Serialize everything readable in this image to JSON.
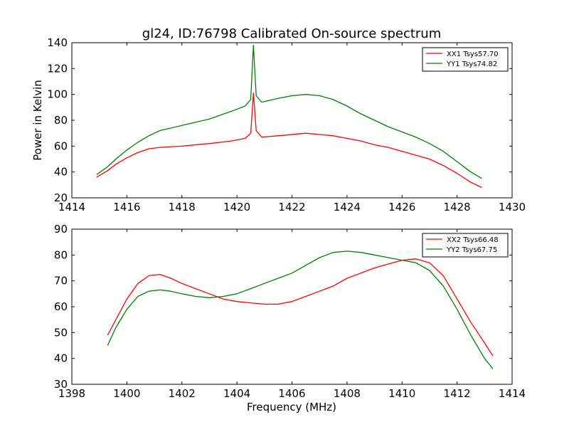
{
  "chart_data": {
    "title": "gl24, ID:76798 Calibrated On-source spectrum",
    "xlabel": "Frequency (MHz)",
    "ylabel": "Power in Kelvin",
    "panels": [
      {
        "type": "line",
        "xlim": [
          1414,
          1430
        ],
        "ylim": [
          20,
          140
        ],
        "xticks": [
          1414,
          1416,
          1418,
          1420,
          1422,
          1424,
          1426,
          1428,
          1430
        ],
        "yticks": [
          20,
          40,
          60,
          80,
          100,
          120,
          140
        ],
        "legend_position": "top-right",
        "series": [
          {
            "name": "XX1 Tsys57.70",
            "color": "#ff0000",
            "x": [
              1414.9,
              1415.3,
              1415.6,
              1416.0,
              1416.4,
              1416.8,
              1417.2,
              1418.0,
              1419.0,
              1419.8,
              1420.3,
              1420.5,
              1420.6,
              1420.7,
              1420.9,
              1421.5,
              1422.5,
              1423.0,
              1423.5,
              1424.0,
              1424.5,
              1425.0,
              1425.5,
              1426.0,
              1426.5,
              1427.0,
              1427.5,
              1428.0,
              1428.5,
              1428.9
            ],
            "y": [
              36,
              41,
              46,
              51,
              55,
              58,
              59,
              60,
              62,
              64,
              66,
              70,
              101,
              72,
              67,
              68,
              70,
              69,
              68,
              66,
              64,
              61,
              59,
              56,
              53,
              50,
              45,
              39,
              32,
              28
            ]
          },
          {
            "name": "YY1 Tsys74.82",
            "color": "#008000",
            "x": [
              1414.9,
              1415.3,
              1415.6,
              1416.0,
              1416.4,
              1416.8,
              1417.2,
              1418.0,
              1419.0,
              1419.8,
              1420.3,
              1420.5,
              1420.6,
              1420.7,
              1420.9,
              1421.5,
              1422.0,
              1422.5,
              1423.0,
              1423.5,
              1424.0,
              1424.5,
              1425.0,
              1425.5,
              1426.0,
              1426.5,
              1427.0,
              1427.5,
              1428.0,
              1428.5,
              1428.9
            ],
            "y": [
              38,
              44,
              50,
              57,
              63,
              68,
              72,
              76,
              81,
              87,
              91,
              96,
              138,
              99,
              94,
              97,
              99,
              100,
              99,
              96,
              91,
              85,
              80,
              75,
              71,
              67,
              62,
              56,
              48,
              40,
              35
            ]
          }
        ]
      },
      {
        "type": "line",
        "xlim": [
          1398,
          1414
        ],
        "ylim": [
          30,
          90
        ],
        "xticks": [
          1398,
          1400,
          1402,
          1404,
          1406,
          1408,
          1410,
          1412,
          1414
        ],
        "yticks": [
          30,
          40,
          50,
          60,
          70,
          80,
          90
        ],
        "legend_position": "top-right",
        "series": [
          {
            "name": "XX2 Tsys66.48",
            "color": "#ff0000",
            "x": [
              1399.3,
              1399.6,
              1400.0,
              1400.4,
              1400.8,
              1401.2,
              1401.6,
              1402.0,
              1402.5,
              1403.0,
              1403.5,
              1404.0,
              1404.5,
              1405.0,
              1405.5,
              1406.0,
              1406.5,
              1407.0,
              1407.5,
              1408.0,
              1408.5,
              1409.0,
              1409.5,
              1410.0,
              1410.5,
              1411.0,
              1411.5,
              1412.0,
              1412.5,
              1413.0,
              1413.3
            ],
            "y": [
              49,
              55,
              63,
              69,
              72,
              72.5,
              71,
              69,
              67,
              65,
              63,
              62,
              61.5,
              61,
              61,
              62,
              64,
              66,
              68,
              71,
              73,
              75,
              76.5,
              78,
              78.5,
              77,
              72,
              63,
              54,
              46,
              41
            ]
          },
          {
            "name": "YY2 Tsys67.75",
            "color": "#008000",
            "x": [
              1399.3,
              1399.6,
              1400.0,
              1400.4,
              1400.8,
              1401.2,
              1401.6,
              1402.0,
              1402.5,
              1403.0,
              1403.5,
              1404.0,
              1404.5,
              1405.0,
              1405.5,
              1406.0,
              1406.5,
              1407.0,
              1407.5,
              1408.0,
              1408.5,
              1409.0,
              1409.5,
              1410.0,
              1410.5,
              1411.0,
              1411.5,
              1412.0,
              1412.5,
              1413.0,
              1413.3
            ],
            "y": [
              45,
              52,
              59,
              64,
              66,
              66.5,
              66,
              65,
              64,
              63.5,
              64,
              65,
              67,
              69,
              71,
              73,
              76,
              79,
              81,
              81.5,
              81,
              80,
              79,
              78,
              77,
              74,
              68,
              59,
              49,
              40,
              36
            ]
          }
        ]
      }
    ]
  }
}
